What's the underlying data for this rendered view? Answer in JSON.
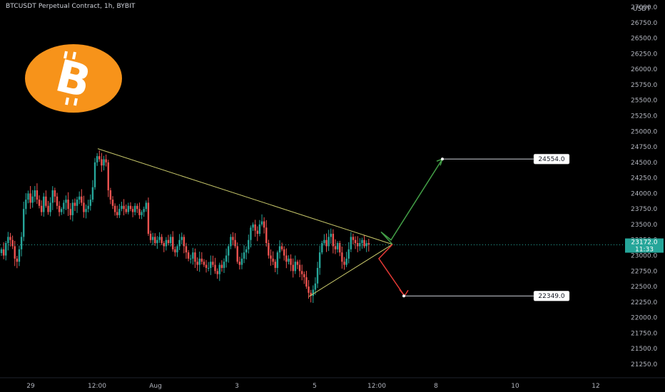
{
  "chart_title": "BTCUSDT Perpetual Contract, 1h, BYBIT",
  "currency": "USDT",
  "logo_glyph": "B",
  "chart_data": {
    "type": "candlestick",
    "symbol": "BTCUSDT",
    "timeframe": "1h",
    "exchange": "BYBIT",
    "x_ticks": [
      "29",
      "12:00",
      "Aug",
      "3",
      "5",
      "12:00",
      "8",
      "10",
      "12"
    ],
    "y_ticks": [
      21250.0,
      21500.0,
      21750.0,
      22000.0,
      22250.0,
      22500.0,
      22750.0,
      23000.0,
      23250.0,
      23500.0,
      23750.0,
      24000.0,
      24250.0,
      24500.0,
      24750.0,
      25000.0,
      25250.0,
      25500.0,
      25750.0,
      26000.0,
      26250.0,
      26500.0,
      26750.0,
      27000.0
    ],
    "ylim": [
      21100,
      27050
    ],
    "current_price": "23172.0",
    "countdown": "11:33",
    "target_up": "24554.0",
    "target_down": "22349.0",
    "triangle": {
      "upper_start_price": 24720,
      "lower_start_price": 22340,
      "apex_price": 23180
    },
    "closes": [
      23100,
      23000,
      23200,
      23300,
      23250,
      23150,
      22950,
      22900,
      23100,
      23300,
      23750,
      23900,
      24000,
      23850,
      23950,
      24050,
      23900,
      23800,
      23700,
      23950,
      23800,
      23700,
      23850,
      24050,
      23950,
      23800,
      23700,
      23750,
      23850,
      23900,
      23750,
      23650,
      23850,
      23800,
      23900,
      23950,
      23850,
      23700,
      23750,
      23800,
      23900,
      24100,
      24500,
      24600,
      24550,
      24450,
      24550,
      24500,
      24050,
      23900,
      23800,
      23700,
      23650,
      23750,
      23800,
      23750,
      23700,
      23800,
      23750,
      23700,
      23800,
      23750,
      23650,
      23700,
      23750,
      23850,
      23350,
      23250,
      23300,
      23200,
      23250,
      23300,
      23200,
      23150,
      23250,
      23200,
      23300,
      23100,
      23050,
      23150,
      23250,
      23300,
      23150,
      23050,
      22950,
      22950,
      23050,
      22900,
      22850,
      22950,
      22900,
      22850,
      22800,
      22800,
      22900,
      22850,
      22750,
      22700,
      22850,
      22800,
      22900,
      23000,
      23150,
      23300,
      23250,
      23150,
      22900,
      22850,
      22950,
      23050,
      23100,
      23250,
      23450,
      23500,
      23400,
      23350,
      23500,
      23550,
      23450,
      23200,
      23000,
      22950,
      22900,
      22800,
      23050,
      23150,
      23100,
      23000,
      22900,
      22950,
      22850,
      22750,
      22900,
      22850,
      22750,
      22700,
      22650,
      22500,
      22400,
      22350,
      22450,
      22550,
      22800,
      23050,
      23200,
      23250,
      23150,
      23300,
      23350,
      23150,
      23100,
      23200,
      23050,
      22900,
      22850,
      22950,
      23100,
      23300,
      23250,
      23200,
      23150,
      23200,
      23250,
      23150,
      23200,
      23172
    ],
    "projection_up": [
      23180,
      23380,
      23250,
      24554
    ],
    "projection_down": [
      23180,
      22950,
      22349
    ]
  }
}
